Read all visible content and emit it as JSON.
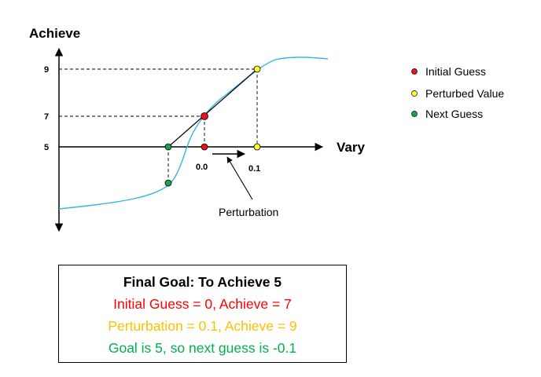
{
  "axes": {
    "y_title": "Achieve",
    "x_title": "Vary",
    "y_ticks": [
      "9",
      "7",
      "5"
    ],
    "x_ticks": [
      "0.0",
      "0.1"
    ]
  },
  "annotation": {
    "perturbation_label": "Perturbation"
  },
  "legend": [
    {
      "label": "Initial Guess",
      "color": "#e8141c"
    },
    {
      "label": "Perturbed Value",
      "color": "#ffff33"
    },
    {
      "label": "Next Guess",
      "color": "#1ba34a"
    }
  ],
  "colors": {
    "curve": "#3bb4e5",
    "axis": "#000000",
    "red": "#e8141c",
    "yellow": "#ffff33",
    "green": "#1ba34a",
    "text_red": "#ff0000",
    "text_orange": "#ffc000",
    "text_green": "#00b050"
  },
  "summary": {
    "title": "Final Goal: To Achieve 5",
    "line1": "Initial Guess = 0, Achieve = 7",
    "line2": "Perturbation = 0.1, Achieve = 9",
    "line3": "Goal is 5, so next guess is -0.1"
  }
}
